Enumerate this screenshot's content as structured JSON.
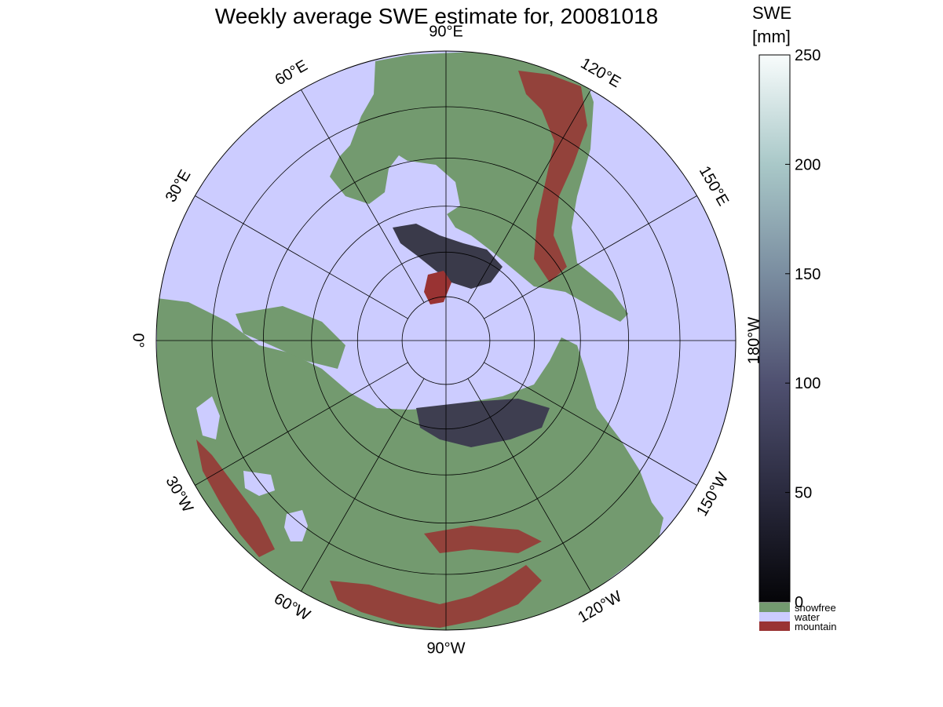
{
  "title": "Weekly average SWE estimate for, 20081018",
  "colorbar": {
    "label_line1": "SWE",
    "label_line2": "[mm]",
    "ticks": [
      "0",
      "50",
      "100",
      "150",
      "200",
      "250"
    ],
    "range": [
      0,
      250
    ],
    "categories": [
      {
        "label": "snowfree",
        "color": "#739a6f"
      },
      {
        "label": "water",
        "color": "#ccccff"
      },
      {
        "label": "mountain",
        "color": "#993333"
      }
    ]
  },
  "longitude_labels": [
    {
      "lon": -90,
      "text": "90°W"
    },
    {
      "lon": -60,
      "text": "60°W"
    },
    {
      "lon": -30,
      "text": "30°W"
    },
    {
      "lon": 0,
      "text": "0°"
    },
    {
      "lon": 30,
      "text": "30°E"
    },
    {
      "lon": 60,
      "text": "60°E"
    },
    {
      "lon": 90,
      "text": "90°E"
    },
    {
      "lon": 120,
      "text": "120°E"
    },
    {
      "lon": 150,
      "text": "150°E"
    },
    {
      "lon": 180,
      "text": "180°W"
    },
    {
      "lon": -150,
      "text": "150°W"
    },
    {
      "lon": -120,
      "text": "120°W"
    }
  ],
  "colors": {
    "water": "#ccccff",
    "snowfree": "#739a6f",
    "mountain": "#993333",
    "snow_low": "#0a0a0e",
    "snow_high": "#f8fcfc"
  },
  "map": {
    "projection": "north-polar-stereographic",
    "graticule_longitudes": [
      0,
      30,
      60,
      90,
      120,
      150,
      180,
      210,
      240,
      270,
      300,
      330
    ],
    "graticule_latitudes": [
      80,
      70,
      60,
      50,
      40,
      30
    ]
  }
}
